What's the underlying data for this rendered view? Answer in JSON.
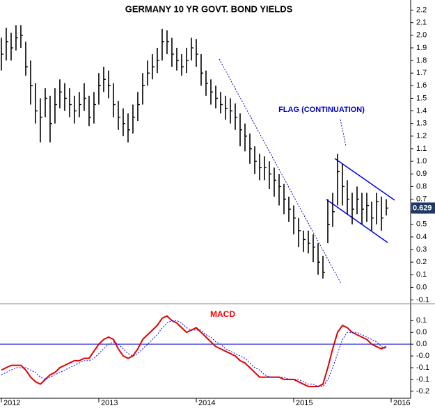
{
  "chart_data": [
    {
      "type": "ohlc",
      "title": "GERMANY 10 YR GOVT. BOND YIELDS",
      "annotation": "FLAG (CONTINUATION)",
      "last_value": 0.629,
      "color": "#000000",
      "last_value_color": "#1f3864",
      "x": [
        2012,
        2012.05,
        2012.1,
        2012.15,
        2012.2,
        2012.25,
        2012.3,
        2012.35,
        2012.4,
        2012.45,
        2012.5,
        2012.55,
        2012.6,
        2012.65,
        2012.7,
        2012.75,
        2012.8,
        2012.85,
        2012.9,
        2012.95,
        2013,
        2013.05,
        2013.1,
        2013.15,
        2013.2,
        2013.25,
        2013.3,
        2013.35,
        2013.4,
        2013.45,
        2013.5,
        2013.55,
        2013.6,
        2013.65,
        2013.7,
        2013.75,
        2013.8,
        2013.85,
        2013.9,
        2013.95,
        2014,
        2014.05,
        2014.1,
        2014.15,
        2014.2,
        2014.25,
        2014.3,
        2014.35,
        2014.4,
        2014.45,
        2014.5,
        2014.55,
        2014.6,
        2014.65,
        2014.7,
        2014.75,
        2014.8,
        2014.85,
        2014.9,
        2014.95,
        2015,
        2015.05,
        2015.1,
        2015.15,
        2015.2,
        2015.25,
        2015.3,
        2015.35,
        2015.4,
        2015.45,
        2015.5,
        2015.55,
        2015.6,
        2015.65,
        2015.7,
        2015.75,
        2015.8,
        2015.85,
        2015.9,
        2015.95
      ],
      "high": [
        1.98,
        2.06,
        2.02,
        2.08,
        2.08,
        1.95,
        1.8,
        1.62,
        1.5,
        1.58,
        1.52,
        1.58,
        1.65,
        1.62,
        1.58,
        1.52,
        1.55,
        1.62,
        1.52,
        1.55,
        1.7,
        1.75,
        1.72,
        1.62,
        1.48,
        1.42,
        1.38,
        1.45,
        1.55,
        1.7,
        1.8,
        1.85,
        1.9,
        2.05,
        2.04,
        1.98,
        1.9,
        1.85,
        1.9,
        1.98,
        1.97,
        1.85,
        1.72,
        1.65,
        1.6,
        1.55,
        1.52,
        1.5,
        1.46,
        1.38,
        1.3,
        1.22,
        1.12,
        1.06,
        1.04,
        1.0,
        0.95,
        0.9,
        0.82,
        0.72,
        0.65,
        0.55,
        0.45,
        0.45,
        0.42,
        0.35,
        0.25,
        0.7,
        0.75,
        1.06,
        0.98,
        0.85,
        0.75,
        0.8,
        0.75,
        0.75,
        0.68,
        0.75,
        0.72,
        0.7
      ],
      "low": [
        1.72,
        1.8,
        1.8,
        1.88,
        1.9,
        1.68,
        1.45,
        1.3,
        1.15,
        1.35,
        1.15,
        1.3,
        1.42,
        1.4,
        1.35,
        1.3,
        1.35,
        1.4,
        1.28,
        1.3,
        1.45,
        1.55,
        1.5,
        1.35,
        1.25,
        1.2,
        1.15,
        1.22,
        1.32,
        1.45,
        1.6,
        1.65,
        1.7,
        1.8,
        1.85,
        1.75,
        1.72,
        1.68,
        1.7,
        1.8,
        1.75,
        1.6,
        1.52,
        1.45,
        1.42,
        1.38,
        1.33,
        1.3,
        1.25,
        1.12,
        1.08,
        0.98,
        0.9,
        0.85,
        0.85,
        0.78,
        0.72,
        0.65,
        0.58,
        0.52,
        0.42,
        0.32,
        0.28,
        0.27,
        0.2,
        0.1,
        0.07,
        0.35,
        0.48,
        0.65,
        0.65,
        0.58,
        0.5,
        0.58,
        0.5,
        0.52,
        0.45,
        0.5,
        0.45,
        0.57
      ],
      "close": [
        1.85,
        1.95,
        1.9,
        1.98,
        2.0,
        1.75,
        1.6,
        1.4,
        1.35,
        1.5,
        1.3,
        1.45,
        1.55,
        1.5,
        1.45,
        1.4,
        1.45,
        1.5,
        1.35,
        1.45,
        1.6,
        1.65,
        1.6,
        1.45,
        1.35,
        1.3,
        1.25,
        1.35,
        1.45,
        1.6,
        1.7,
        1.75,
        1.8,
        1.95,
        1.95,
        1.85,
        1.8,
        1.75,
        1.8,
        1.9,
        1.85,
        1.7,
        1.62,
        1.55,
        1.5,
        1.45,
        1.42,
        1.4,
        1.35,
        1.25,
        1.2,
        1.1,
        1.0,
        0.95,
        0.95,
        0.9,
        0.85,
        0.8,
        0.7,
        0.62,
        0.55,
        0.45,
        0.38,
        0.35,
        0.32,
        0.2,
        0.12,
        0.5,
        0.6,
        0.92,
        0.8,
        0.7,
        0.62,
        0.7,
        0.62,
        0.65,
        0.55,
        0.68,
        0.55,
        0.629
      ],
      "xlim": [
        2011.986,
        2016.2
      ],
      "xticks": [
        2012,
        2013,
        2014,
        2015,
        2016
      ],
      "ylim": [
        -0.13,
        2.28
      ],
      "yticks": [
        2.2,
        2.1,
        {
          "value": 2,
          "label": "2.0"
        },
        1.9,
        1.8,
        1.7,
        1.6,
        1.5,
        1.4,
        1.3,
        1.2,
        1.1,
        {
          "value": 1,
          "label": "1.0"
        },
        0.9,
        0.8,
        0.7,
        0.6,
        0.5,
        0.4,
        0.3,
        0.2,
        0.1,
        {
          "value": 0,
          "label": "0.0"
        },
        -0.1
      ]
    },
    {
      "type": "line",
      "title": "MACD",
      "title_color": "#ff0000",
      "zero_line_color": "#0000cc",
      "ylim": [
        -0.227,
        0.163
      ],
      "yticks": [
        0.1,
        {
          "value": 0.05,
          "label": "0.0"
        },
        {
          "value": 0,
          "label": "0.0"
        },
        {
          "value": -0.05,
          "label": "-0.0"
        },
        -0.1,
        {
          "value": -0.15,
          "label": "-0.1"
        },
        -0.2
      ],
      "series": [
        {
          "color": "#e00000",
          "dashed": false,
          "values": [
            -0.11,
            -0.1,
            -0.09,
            -0.09,
            -0.09,
            -0.11,
            -0.14,
            -0.16,
            -0.17,
            -0.15,
            -0.13,
            -0.12,
            -0.1,
            -0.09,
            -0.08,
            -0.07,
            -0.07,
            -0.06,
            -0.06,
            -0.03,
            0.0,
            0.02,
            0.03,
            0.02,
            -0.02,
            -0.05,
            -0.06,
            -0.05,
            -0.02,
            0.02,
            0.04,
            0.06,
            0.08,
            0.11,
            0.12,
            0.1,
            0.09,
            0.07,
            0.05,
            0.06,
            0.07,
            0.05,
            0.03,
            0.01,
            -0.01,
            -0.02,
            -0.03,
            -0.04,
            -0.05,
            -0.07,
            -0.08,
            -0.1,
            -0.12,
            -0.14,
            -0.14,
            -0.14,
            -0.14,
            -0.14,
            -0.15,
            -0.15,
            -0.15,
            -0.16,
            -0.17,
            -0.18,
            -0.18,
            -0.18,
            -0.17,
            -0.1,
            -0.02,
            0.05,
            0.08,
            0.07,
            0.05,
            0.04,
            0.03,
            0.02,
            0.0,
            -0.01,
            -0.02,
            -0.01
          ]
        },
        {
          "color": "#0000ff",
          "dashed": true,
          "values": [
            -0.13,
            -0.12,
            -0.11,
            -0.1,
            -0.1,
            -0.1,
            -0.11,
            -0.12,
            -0.14,
            -0.15,
            -0.14,
            -0.13,
            -0.12,
            -0.11,
            -0.1,
            -0.09,
            -0.08,
            -0.07,
            -0.07,
            -0.06,
            -0.04,
            -0.02,
            0.0,
            0.01,
            0.0,
            -0.02,
            -0.04,
            -0.05,
            -0.04,
            -0.02,
            0.0,
            0.02,
            0.04,
            0.07,
            0.09,
            0.1,
            0.1,
            0.09,
            0.07,
            0.06,
            0.06,
            0.06,
            0.04,
            0.03,
            0.01,
            0.0,
            -0.02,
            -0.03,
            -0.04,
            -0.05,
            -0.06,
            -0.08,
            -0.1,
            -0.11,
            -0.13,
            -0.14,
            -0.14,
            -0.14,
            -0.14,
            -0.15,
            -0.15,
            -0.15,
            -0.16,
            -0.17,
            -0.17,
            -0.18,
            -0.18,
            -0.15,
            -0.1,
            -0.04,
            0.02,
            0.05,
            0.05,
            0.05,
            0.04,
            0.03,
            0.02,
            0.01,
            -0.01,
            -0.02
          ]
        }
      ]
    }
  ]
}
